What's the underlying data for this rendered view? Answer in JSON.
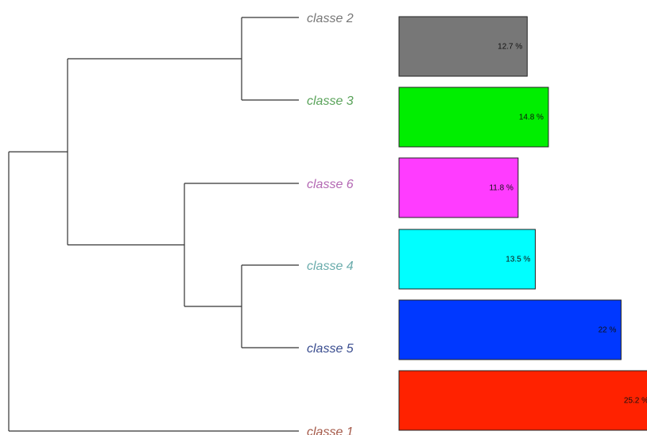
{
  "chart_data": {
    "type": "bar",
    "orientation": "horizontal",
    "categories": [
      "classe 2",
      "classe 3",
      "classe 6",
      "classe 4",
      "classe 5",
      "classe 1"
    ],
    "values": [
      12.7,
      14.8,
      11.8,
      13.5,
      22,
      25.2
    ],
    "value_labels": [
      "12.7 %",
      "14.8 %",
      "11.8 %",
      "13.5 %",
      "22 %",
      "25.2 %"
    ],
    "colors": [
      "#777777",
      "#00ee00",
      "#ff3cff",
      "#00ffff",
      "#0038ff",
      "#ff2200"
    ],
    "label_colors": [
      "#777777",
      "#5aa35a",
      "#b469b4",
      "#6aacac",
      "#3a4d8f",
      "#a55a4a"
    ],
    "dendrogram": {
      "leaf_order": [
        "classe 2",
        "classe 3",
        "classe 6",
        "classe 4",
        "classe 5",
        "classe 1"
      ],
      "merges": [
        {
          "left": "classe 2",
          "right": "classe 3",
          "level": 1
        },
        {
          "left": "classe 4",
          "right": "classe 5",
          "level": 1
        },
        {
          "left": "classe 6",
          "right": "classe 4+5",
          "level": 2
        },
        {
          "left": "classe 2+3",
          "right": "classe 6+4+5",
          "level": 3
        },
        {
          "left": "classe 2+3+6+4+5",
          "right": "classe 1",
          "level": 4
        }
      ]
    },
    "title": "",
    "xlabel": "",
    "ylabel": "",
    "grid": false,
    "legend": "none"
  }
}
